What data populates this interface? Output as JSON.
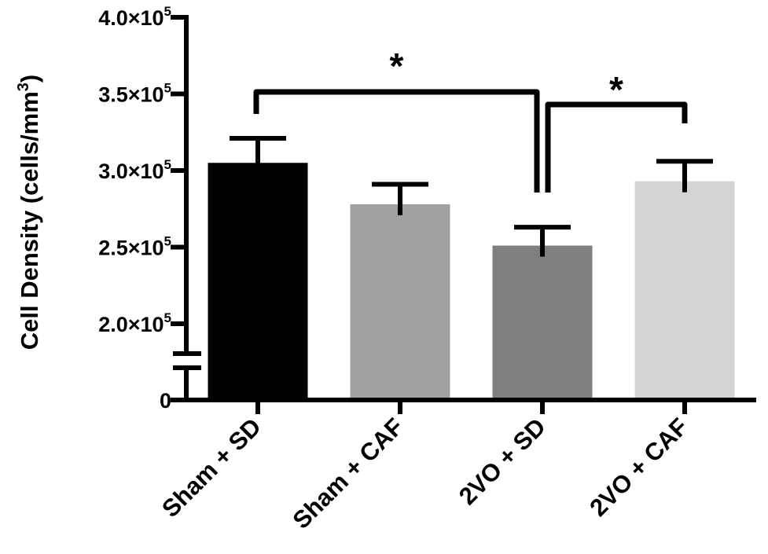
{
  "chart_data": {
    "type": "bar",
    "title": "",
    "xlabel": "",
    "ylabel": "Cell Density (cells/mm",
    "ylabel_sup": "3",
    "ylabel_close": ")",
    "categories": [
      "Sham + SD",
      "Sham + CAF",
      "2VO + SD",
      "2VO + CAF"
    ],
    "values": [
      305000,
      278000,
      251000,
      293000
    ],
    "errors": [
      16000,
      13000,
      12000,
      13000
    ],
    "colors": [
      "#000000",
      "#a0a0a0",
      "#7f7f7f",
      "#d4d4d4"
    ],
    "ylim": [
      200000,
      400000
    ],
    "y_ticks": [
      {
        "value": 400000,
        "base": "4.0×10",
        "exp": "5"
      },
      {
        "value": 350000,
        "base": "3.5×10",
        "exp": "5"
      },
      {
        "value": 300000,
        "base": "3.0×10",
        "exp": "5"
      },
      {
        "value": 250000,
        "base": "2.5×10",
        "exp": "5"
      },
      {
        "value": 200000,
        "base": "2.0×10",
        "exp": "5"
      }
    ],
    "y_zero_label": "0",
    "axis_break": true,
    "significance": [
      {
        "from": 0,
        "to": 2,
        "label": "*"
      },
      {
        "from": 2,
        "to": 3,
        "label": "*"
      }
    ]
  }
}
